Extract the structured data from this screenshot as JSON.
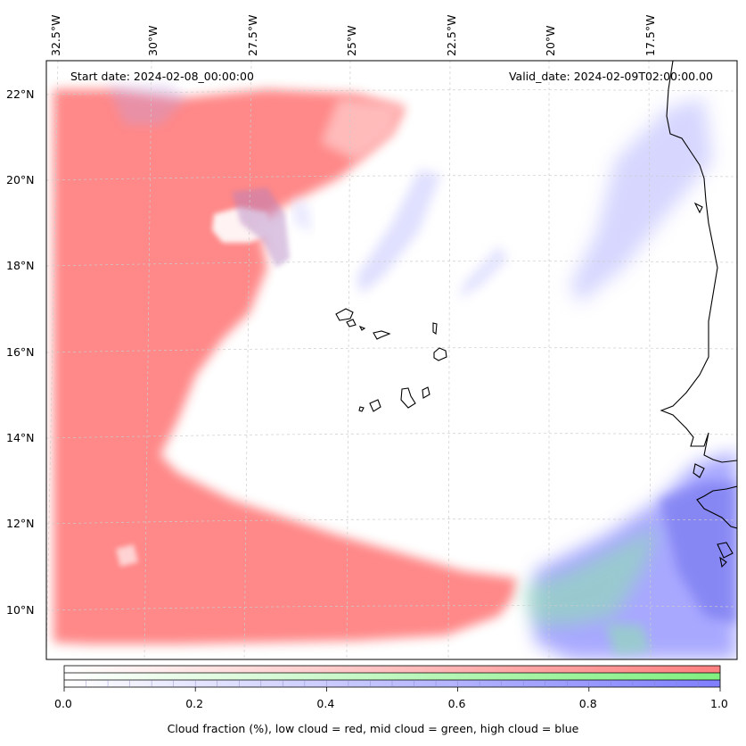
{
  "map": {
    "title_left": "Start date: 2024-02-08_00:00:00",
    "title_right": "Valid_date: 2024-02-09T02:00:00.00",
    "lon_labels": [
      "32.5°W",
      "30°W",
      "27.5°W",
      "25°W",
      "22.5°W",
      "20°W",
      "17.5°W"
    ],
    "lat_labels": [
      "22°N",
      "20°N",
      "18°N",
      "16°N",
      "14°N",
      "12°N",
      "10°N"
    ],
    "lon_range": [
      -33,
      -15.5
    ],
    "lat_range": [
      8.8,
      22.8
    ],
    "islands": [
      "Santo Antão",
      "São Vicente",
      "Santa Luzia",
      "São Nicolau",
      "Sal",
      "Boa Vista",
      "Maio",
      "Santiago",
      "Fogo",
      "Brava"
    ],
    "regions": {
      "low_cloud": "western band and southern tongue",
      "mid_cloud": "southeast near coast",
      "high_cloud": "northeast streaks and southeast"
    }
  },
  "colorbar": {
    "ticks": [
      "0.0",
      "0.2",
      "0.4",
      "0.6",
      "0.8",
      "1.0"
    ],
    "tick_values": [
      0.0,
      0.2,
      0.4,
      0.6,
      0.8,
      1.0
    ],
    "low_color": "#ff7f7f",
    "mid_color": "#80f080",
    "high_color": "#7f7fff",
    "caption": "Cloud fraction (%), low cloud = red, mid cloud = green, high cloud = blue"
  }
}
